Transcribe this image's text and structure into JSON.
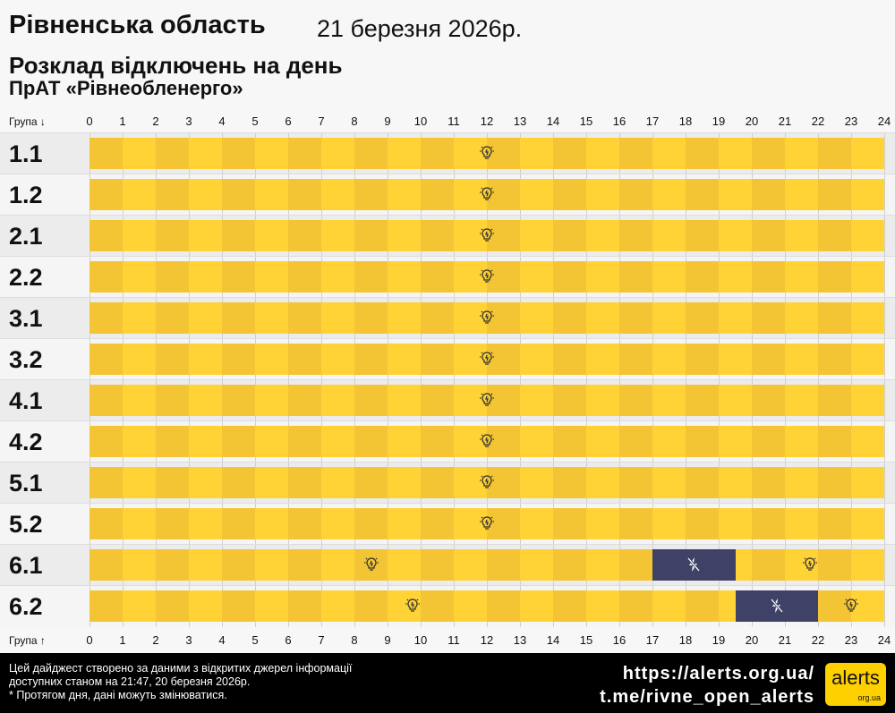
{
  "header": {
    "region": "Рівненська область",
    "date": "21 березня 2026р.",
    "subtitle": "Розклад відключень на день",
    "company": "ПрАТ «Рівнеобленерго»"
  },
  "axis": {
    "group_label_top": "Група ↓",
    "group_label_bottom": "Група ↑",
    "hours": [
      "0",
      "1",
      "2",
      "3",
      "4",
      "5",
      "6",
      "7",
      "8",
      "9",
      "10",
      "11",
      "12",
      "13",
      "14",
      "15",
      "16",
      "17",
      "18",
      "19",
      "20",
      "21",
      "22",
      "23",
      "24"
    ]
  },
  "colors": {
    "power_on_even": "#f3c534",
    "power_on_odd": "#ffd335",
    "power_off": "#3f4266",
    "row_bg_a": "#ececec",
    "row_bg_b": "#f5f5f5"
  },
  "legend_icons": {
    "on": "lightbulb-icon",
    "off": "no-power-icon"
  },
  "groups": [
    {
      "name": "1.1",
      "outages": []
    },
    {
      "name": "1.2",
      "outages": []
    },
    {
      "name": "2.1",
      "outages": []
    },
    {
      "name": "2.2",
      "outages": []
    },
    {
      "name": "3.1",
      "outages": []
    },
    {
      "name": "3.2",
      "outages": []
    },
    {
      "name": "4.1",
      "outages": []
    },
    {
      "name": "4.2",
      "outages": []
    },
    {
      "name": "5.1",
      "outages": []
    },
    {
      "name": "5.2",
      "outages": []
    },
    {
      "name": "6.1",
      "outages": [
        [
          17,
          19.5
        ]
      ]
    },
    {
      "name": "6.2",
      "outages": [
        [
          19.5,
          22
        ]
      ]
    }
  ],
  "footer": {
    "note1": "Цей дайджест створено за даними з відкритих джерел інформації",
    "note2": "доступних станом на 21:47, 20 березня 2026р.",
    "note3": "* Протягом дня, дані можуть змінюватися.",
    "site": "https://alerts.org.ua/",
    "telegram": "t.me/rivne_open_alerts",
    "logo_main": "alerts",
    "logo_sub": "org.ua"
  }
}
